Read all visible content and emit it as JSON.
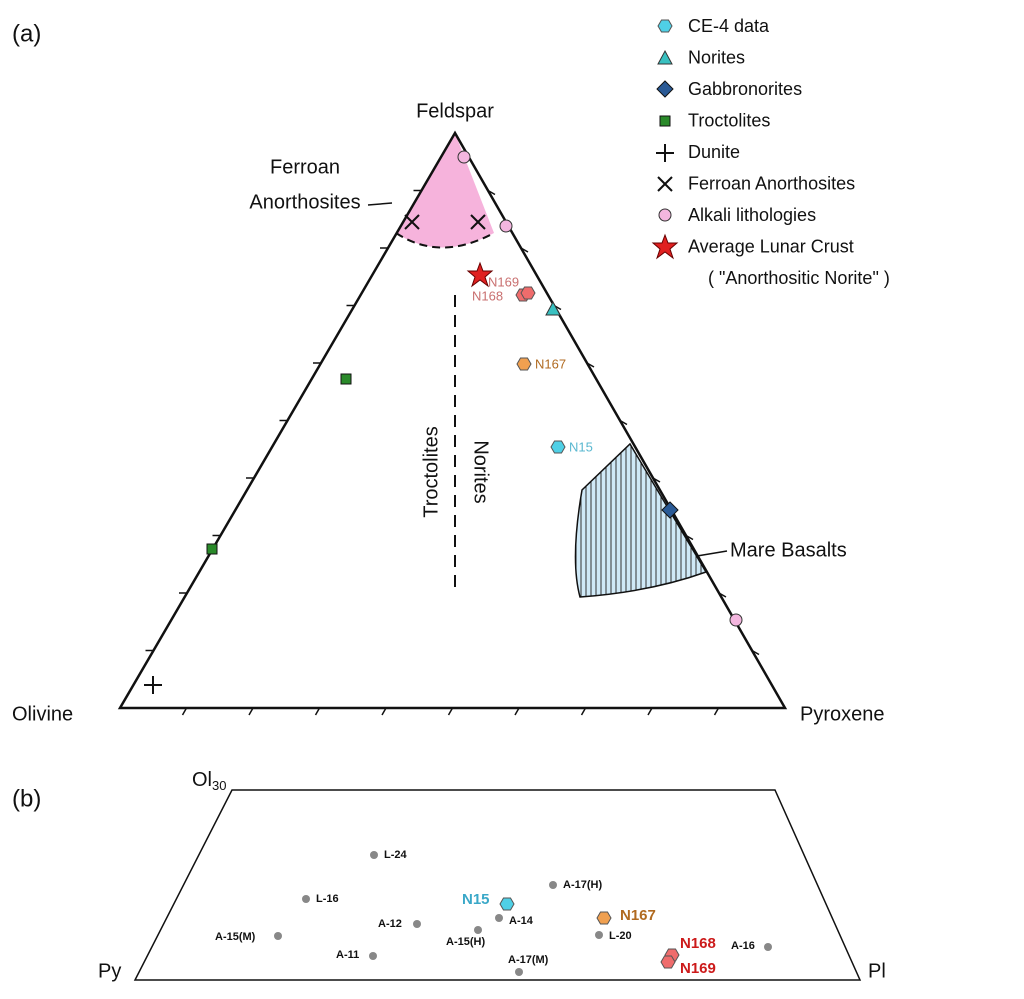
{
  "panel_a": {
    "label": "(a)",
    "vertices": {
      "top": "Feldspar",
      "left": "Olivine",
      "right": "Pyroxene"
    },
    "legend": [
      "CE-4 data",
      "Norites",
      "Gabbronorites",
      "Troctolites",
      "Dunite",
      "Ferroan Anorthosites",
      "Alkali lithologies",
      "Average Lunar Crust",
      "( \"Anorthositic Norite\" )"
    ],
    "annotations": {
      "ferroan_1": "Ferroan",
      "ferroan_2": "Anorthosites",
      "troctolites": "Troctolites",
      "norites": "Norites",
      "mare": "Mare Basalts"
    },
    "point_labels": [
      "N169",
      "N168",
      "N167",
      "N15"
    ]
  },
  "panel_b": {
    "label": "(b)",
    "top_left": {
      "text": "Ol",
      "subscript": "30"
    },
    "left": "Py",
    "right": "Pl",
    "points": [
      "L-24",
      "L-16",
      "A-17(H)",
      "N15",
      "A-12",
      "A-14",
      "A-15(H)",
      "N167",
      "L-20",
      "A-15(M)",
      "A-11",
      "A-17(M)",
      "N168",
      "N169",
      "A-16"
    ]
  }
}
